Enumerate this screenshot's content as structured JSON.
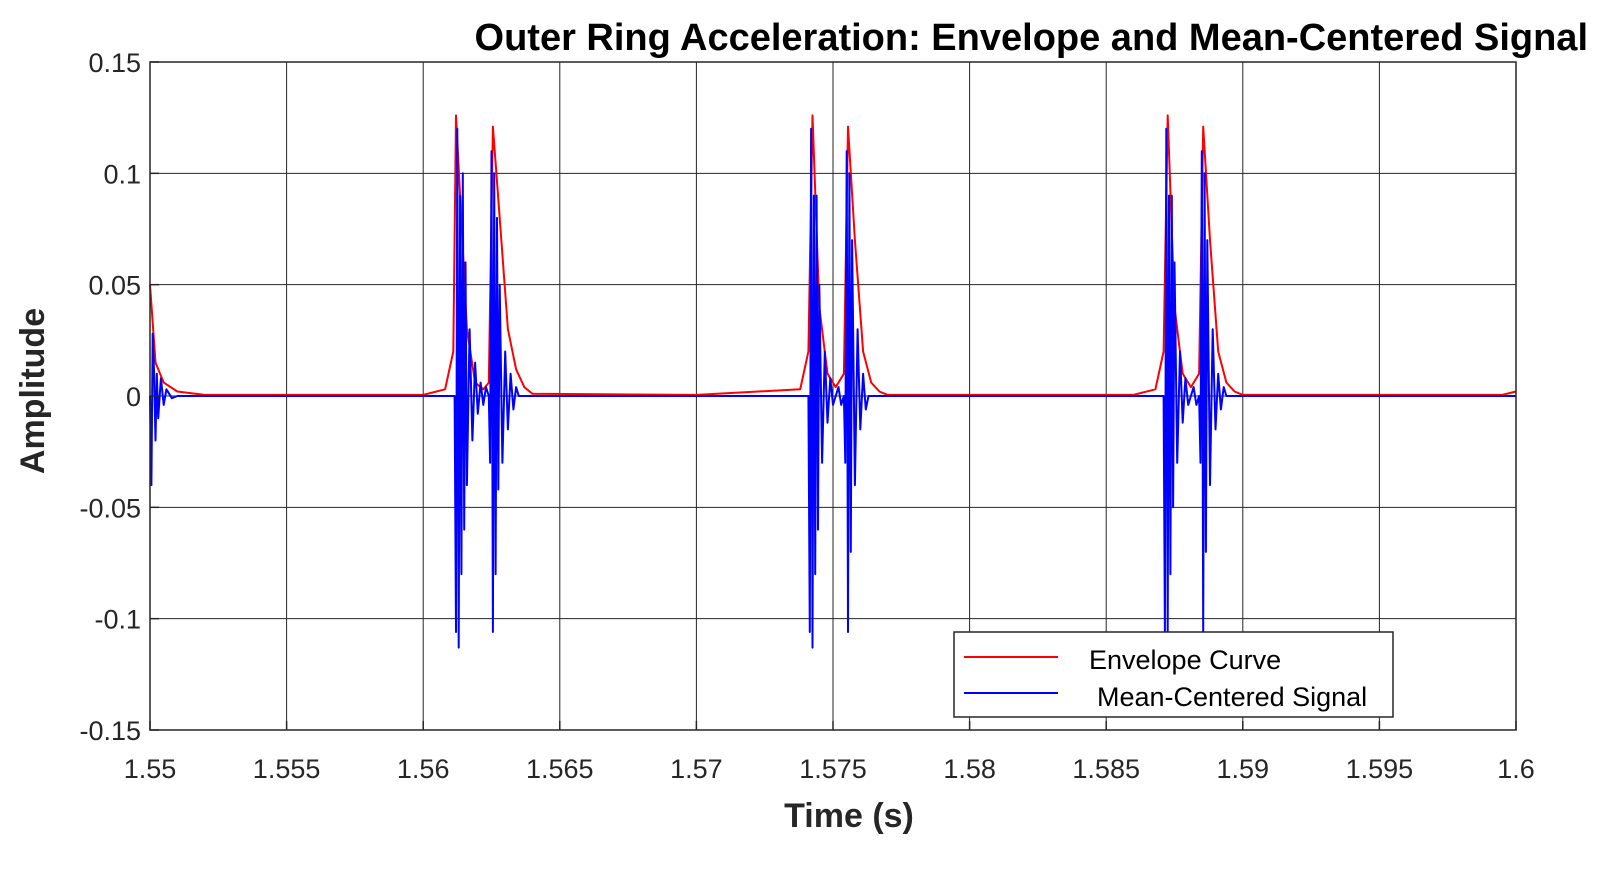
{
  "chart_data": {
    "type": "line",
    "title": "Outer Ring Acceleration: Envelope and Mean-Centered Signal",
    "xlabel": "Time (s)",
    "ylabel": "Amplitude",
    "xlim": [
      1.55,
      1.6
    ],
    "ylim": [
      -0.15,
      0.15
    ],
    "x_ticks": [
      1.55,
      1.555,
      1.56,
      1.565,
      1.57,
      1.575,
      1.58,
      1.585,
      1.59,
      1.595,
      1.6
    ],
    "x_tick_labels": [
      "1.55",
      "1.555",
      "1.56",
      "1.565",
      "1.57",
      "1.575",
      "1.58",
      "1.585",
      "1.59",
      "1.595",
      "1.6"
    ],
    "y_ticks": [
      0.15,
      0.1,
      0.05,
      0,
      -0.05,
      -0.1,
      -0.15
    ],
    "y_tick_labels": [
      "0.15",
      "0.1",
      "0.05",
      "0",
      "-0.05",
      "-0.1",
      "-0.15"
    ],
    "grid": true,
    "legend_position": "bottom-right",
    "series": [
      {
        "name": "Envelope Curve",
        "color": "#ff0000",
        "x": [
          1.55,
          1.5502,
          1.5505,
          1.551,
          1.552,
          1.56,
          1.5608,
          1.5611,
          1.5612,
          1.56135,
          1.5616,
          1.5619,
          1.5622,
          1.5624,
          1.56255,
          1.5628,
          1.5631,
          1.5634,
          1.5637,
          1.564,
          1.57,
          1.5738,
          1.5741,
          1.57425,
          1.5745,
          1.5748,
          1.5751,
          1.5754,
          1.57555,
          1.5758,
          1.5761,
          1.5764,
          1.5767,
          1.577,
          1.586,
          1.5868,
          1.5871,
          1.58725,
          1.5875,
          1.5878,
          1.5881,
          1.5884,
          1.58855,
          1.5888,
          1.5891,
          1.5894,
          1.5897,
          1.59,
          1.5995,
          1.6
        ],
        "y": [
          0.05,
          0.015,
          0.006,
          0.002,
          0.0005,
          0.0005,
          0.003,
          0.02,
          0.126,
          0.09,
          0.03,
          0.006,
          0.003,
          0.006,
          0.121,
          0.08,
          0.03,
          0.012,
          0.004,
          0.001,
          0.0005,
          0.003,
          0.02,
          0.126,
          0.04,
          0.01,
          0.004,
          0.01,
          0.121,
          0.07,
          0.02,
          0.006,
          0.002,
          0.0005,
          0.0005,
          0.003,
          0.02,
          0.126,
          0.04,
          0.01,
          0.004,
          0.01,
          0.121,
          0.07,
          0.02,
          0.006,
          0.002,
          0.0005,
          0.0005,
          0.002
        ]
      },
      {
        "name": "Mean-Centered Signal",
        "color": "#0000ff",
        "x": [
          1.55,
          1.55005,
          1.5501,
          1.55015,
          1.5502,
          1.55025,
          1.5503,
          1.5504,
          1.5505,
          1.5506,
          1.5508,
          1.551,
          1.5611,
          1.56115,
          1.5612,
          1.56125,
          1.5613,
          1.56135,
          1.5614,
          1.56145,
          1.5615,
          1.56155,
          1.5616,
          1.5617,
          1.5618,
          1.5619,
          1.562,
          1.5621,
          1.5622,
          1.5623,
          1.5624,
          1.56245,
          1.5625,
          1.56255,
          1.5626,
          1.56265,
          1.5627,
          1.56275,
          1.5628,
          1.5629,
          1.563,
          1.5631,
          1.5632,
          1.5633,
          1.5634,
          1.5635,
          1.5736,
          1.5739,
          1.5741,
          1.57415,
          1.5742,
          1.57425,
          1.5743,
          1.57435,
          1.5744,
          1.57445,
          1.5745,
          1.5746,
          1.5747,
          1.5748,
          1.5749,
          1.575,
          1.5751,
          1.5752,
          1.5753,
          1.5754,
          1.57545,
          1.5755,
          1.57555,
          1.5756,
          1.57565,
          1.5757,
          1.5758,
          1.5759,
          1.576,
          1.5761,
          1.5762,
          1.5763,
          1.5871,
          1.58715,
          1.5872,
          1.58725,
          1.5873,
          1.58735,
          1.5874,
          1.58745,
          1.5875,
          1.5876,
          1.5877,
          1.5878,
          1.5879,
          1.588,
          1.5881,
          1.5882,
          1.5883,
          1.5884,
          1.58845,
          1.5885,
          1.58855,
          1.5886,
          1.58865,
          1.5887,
          1.5888,
          1.5889,
          1.589,
          1.5891,
          1.5892,
          1.5893,
          1.5894,
          1.6
        ],
        "y": [
          0.0,
          -0.04,
          0.028,
          0.01,
          -0.02,
          0.01,
          -0.01,
          0.008,
          -0.004,
          0.003,
          -0.001,
          0.0,
          0.0,
          0.0,
          -0.106,
          0.12,
          -0.113,
          0.09,
          -0.08,
          0.1,
          -0.06,
          0.06,
          -0.04,
          0.03,
          -0.02,
          0.015,
          -0.008,
          0.006,
          -0.004,
          0.004,
          0.0,
          -0.03,
          0.11,
          -0.106,
          0.1,
          -0.08,
          0.08,
          -0.042,
          0.05,
          -0.03,
          0.02,
          -0.015,
          0.01,
          -0.006,
          0.004,
          0.0,
          0.0,
          0.0,
          0.0,
          -0.106,
          0.12,
          -0.113,
          0.09,
          -0.08,
          0.09,
          -0.06,
          0.05,
          -0.03,
          0.02,
          -0.012,
          0.008,
          -0.004,
          0.0,
          0.004,
          -0.004,
          0.0,
          -0.03,
          0.11,
          -0.106,
          0.1,
          -0.07,
          0.07,
          -0.04,
          0.03,
          -0.015,
          0.01,
          -0.006,
          0.0,
          0.0,
          -0.106,
          0.12,
          -0.106,
          0.09,
          -0.08,
          0.09,
          -0.05,
          0.06,
          -0.03,
          0.02,
          -0.012,
          0.008,
          -0.004,
          0.0,
          0.004,
          -0.004,
          0.0,
          -0.03,
          0.11,
          -0.106,
          0.1,
          -0.07,
          0.07,
          -0.04,
          0.03,
          -0.015,
          0.01,
          -0.006,
          0.004,
          0.0,
          0.0
        ]
      }
    ]
  }
}
